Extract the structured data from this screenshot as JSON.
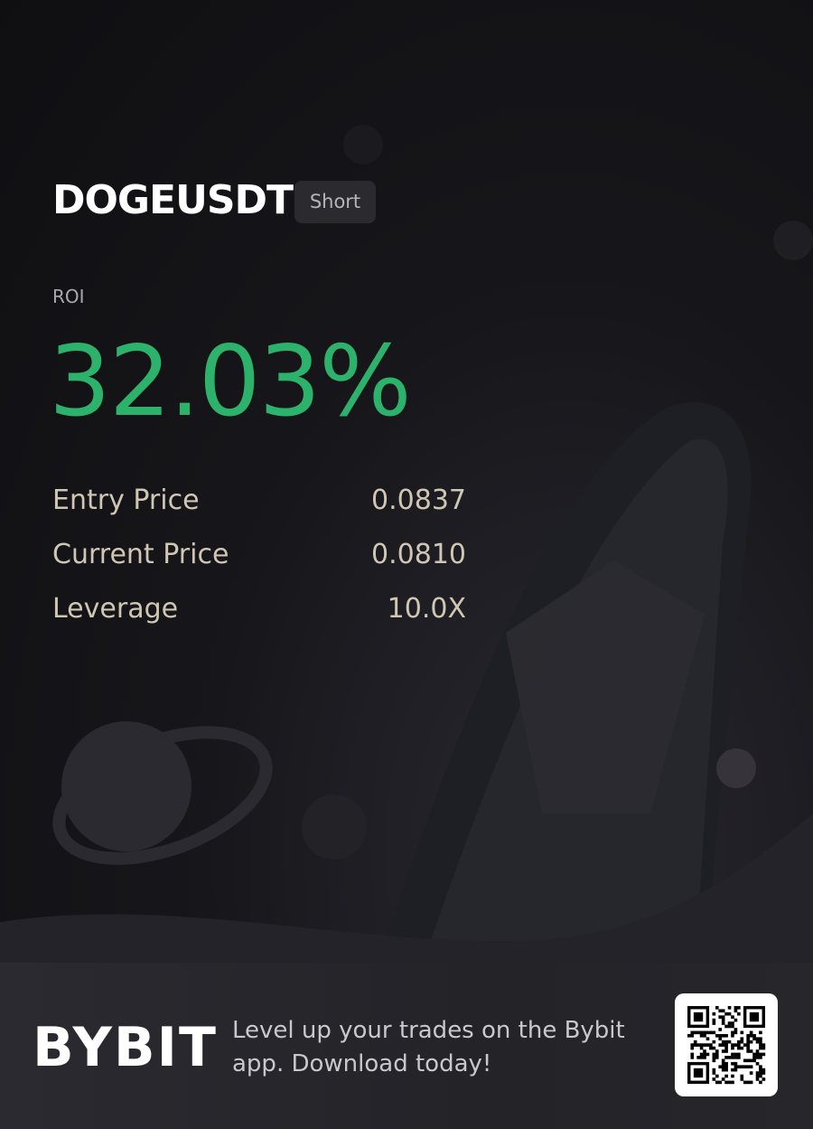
{
  "header": {
    "symbol": "DOGEUSDT",
    "side": "Short"
  },
  "roi": {
    "label": "ROI",
    "value": "32.03%"
  },
  "details": [
    {
      "label": "Entry Price",
      "value": "0.0837"
    },
    {
      "label": "Current Price",
      "value": "0.0810"
    },
    {
      "label": "Leverage",
      "value": "10.0X"
    }
  ],
  "footer": {
    "logo": "BYBIT",
    "tagline": "Level up your trades on the Bybit app. Download today!"
  }
}
